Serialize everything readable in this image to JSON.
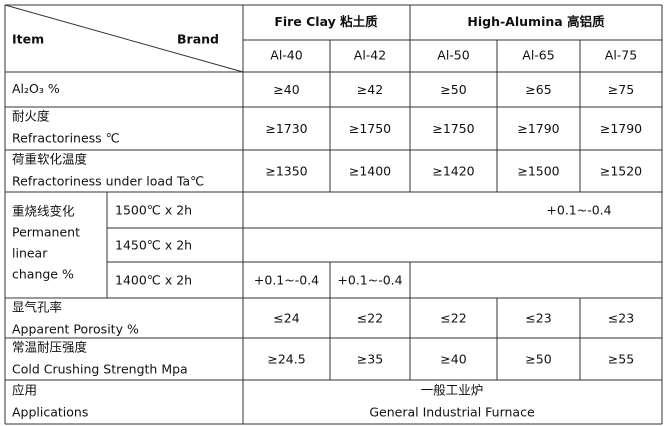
{
  "header": {
    "item": "Item",
    "brand": "Brand",
    "groups": [
      {
        "name": "Fire Clay",
        "name_cn": "粘土质"
      },
      {
        "name": "High-Alumina",
        "name_cn": "高铝质"
      }
    ],
    "brands": [
      "Al-40",
      "Al-42",
      "Al-50",
      "Al-65",
      "Al-75"
    ]
  },
  "rows": [
    {
      "label": [
        "Al₂O₃ %"
      ],
      "values": [
        "≥40",
        "≥42",
        "≥50",
        "≥65",
        "≥75"
      ]
    },
    {
      "label": [
        "耐火度",
        "Refractoriness ℃"
      ],
      "values": [
        "≥1730",
        "≥1750",
        "≥1750",
        "≥1790",
        "≥1790"
      ]
    },
    {
      "label": [
        "荷重软化温度",
        "Refractoriness under load Ta℃"
      ],
      "values": [
        "≥1350",
        "≥1400",
        "≥1420",
        "≥1500",
        "≥1520"
      ]
    }
  ],
  "linear_change": {
    "label": [
      "重烧线变化",
      "Permanent",
      "linear",
      "change %"
    ],
    "conditions": [
      {
        "condition": "1500℃ x 2h",
        "high_alumina_65_75": "+0.1~-0.4"
      },
      {
        "condition": "1450℃ x 2h"
      },
      {
        "condition": "1400℃ x 2h",
        "fire_clay": [
          "+0.1~-0.4",
          "+0.1~-0.4"
        ]
      }
    ]
  },
  "rows2": [
    {
      "label": [
        "显气孔率",
        "Apparent Porosity %"
      ],
      "values": [
        "≤24",
        "≤22",
        "≤22",
        "≤23",
        "≤23"
      ]
    },
    {
      "label": [
        "常温耐压强度",
        "Cold Crushing Strength Mpa"
      ],
      "values": [
        "≥24.5",
        "≥35",
        "≥40",
        "≥50",
        "≥55"
      ]
    }
  ],
  "applications": {
    "label": [
      "应用",
      "Applications"
    ],
    "value": [
      "一般工业炉",
      "General Industrial Furnace"
    ]
  }
}
